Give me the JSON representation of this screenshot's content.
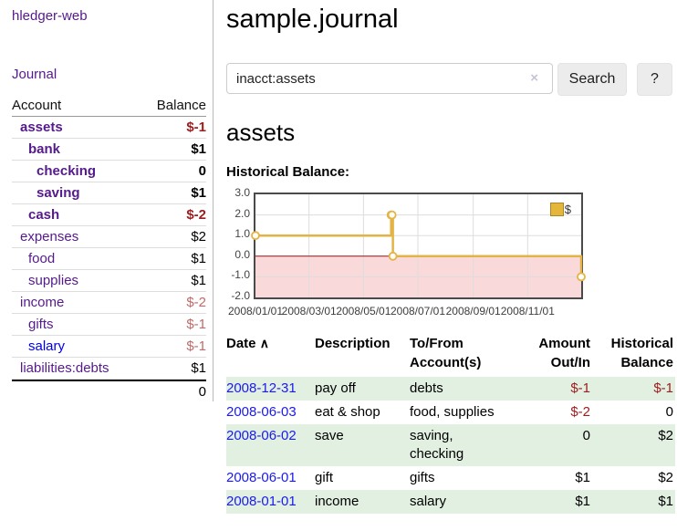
{
  "app": {
    "brand": "hledger-web"
  },
  "nav": {
    "journal": "Journal"
  },
  "sidebar": {
    "account_header": "Account",
    "balance_header": "Balance",
    "accounts": [
      {
        "name": "assets",
        "balance": "$-1"
      },
      {
        "name": "bank",
        "balance": "$1"
      },
      {
        "name": "checking",
        "balance": "0"
      },
      {
        "name": "saving",
        "balance": "$1"
      },
      {
        "name": "cash",
        "balance": "$-2"
      },
      {
        "name": "expenses",
        "balance": "$2"
      },
      {
        "name": "food",
        "balance": "$1"
      },
      {
        "name": "supplies",
        "balance": "$1"
      },
      {
        "name": "income",
        "balance": "$-2"
      },
      {
        "name": "gifts",
        "balance": "$-1"
      },
      {
        "name": "salary",
        "balance": "$-1"
      },
      {
        "name": "liabilities:debts",
        "balance": "$1"
      }
    ],
    "total": "0"
  },
  "main": {
    "title": "sample.journal",
    "search": {
      "query": "inacct:assets",
      "clear_icon": "×",
      "search_button": "Search",
      "help_button": "?"
    },
    "account_heading": "assets",
    "chart_title": "Historical Balance:"
  },
  "chart_data": {
    "type": "line",
    "title": "Historical Balance:",
    "step": true,
    "series": [
      {
        "name": "$",
        "points": [
          [
            "2008-01-01",
            1
          ],
          [
            "2008-06-01",
            2
          ],
          [
            "2008-06-02",
            2
          ],
          [
            "2008-06-03",
            0
          ],
          [
            "2008-12-31",
            -1
          ]
        ]
      }
    ],
    "x_domain": [
      "2008-01-01",
      "2008-12-31"
    ],
    "ylim": [
      -2,
      3
    ],
    "yticks": [
      "3.0",
      "2.0",
      "1.0",
      "0.0",
      "-1.0",
      "-2.0"
    ],
    "xticks": [
      "2008/01/01",
      "2008/03/01",
      "2008/05/01",
      "2008/07/01",
      "2008/09/01",
      "2008/11/01"
    ],
    "legend": "$",
    "legend_position": "top-right",
    "grid": true,
    "negative_region_shaded": true,
    "colors": {
      "line": "#e3b445",
      "negative_fill": "#f9d9d9",
      "zero_line": "#8b1717"
    }
  },
  "register": {
    "headers": {
      "date": "Date",
      "sort_icon": "∧",
      "description": "Description",
      "accounts": "To/From Account(s)",
      "amount": "Amount Out/In",
      "balance": "Historical Balance"
    },
    "rows": [
      {
        "date": "2008-12-31",
        "description": "pay off",
        "accounts": "debts",
        "amount": "$-1",
        "balance": "$-1"
      },
      {
        "date": "2008-06-03",
        "description": "eat & shop",
        "accounts": "food, supplies",
        "amount": "$-2",
        "balance": "0"
      },
      {
        "date": "2008-06-02",
        "description": "save",
        "accounts": "saving, checking",
        "amount": "0",
        "balance": "$2"
      },
      {
        "date": "2008-06-01",
        "description": "gift",
        "accounts": "gifts",
        "amount": "$1",
        "balance": "$2"
      },
      {
        "date": "2008-01-01",
        "description": "income",
        "accounts": "salary",
        "amount": "$1",
        "balance": "$1"
      }
    ]
  }
}
